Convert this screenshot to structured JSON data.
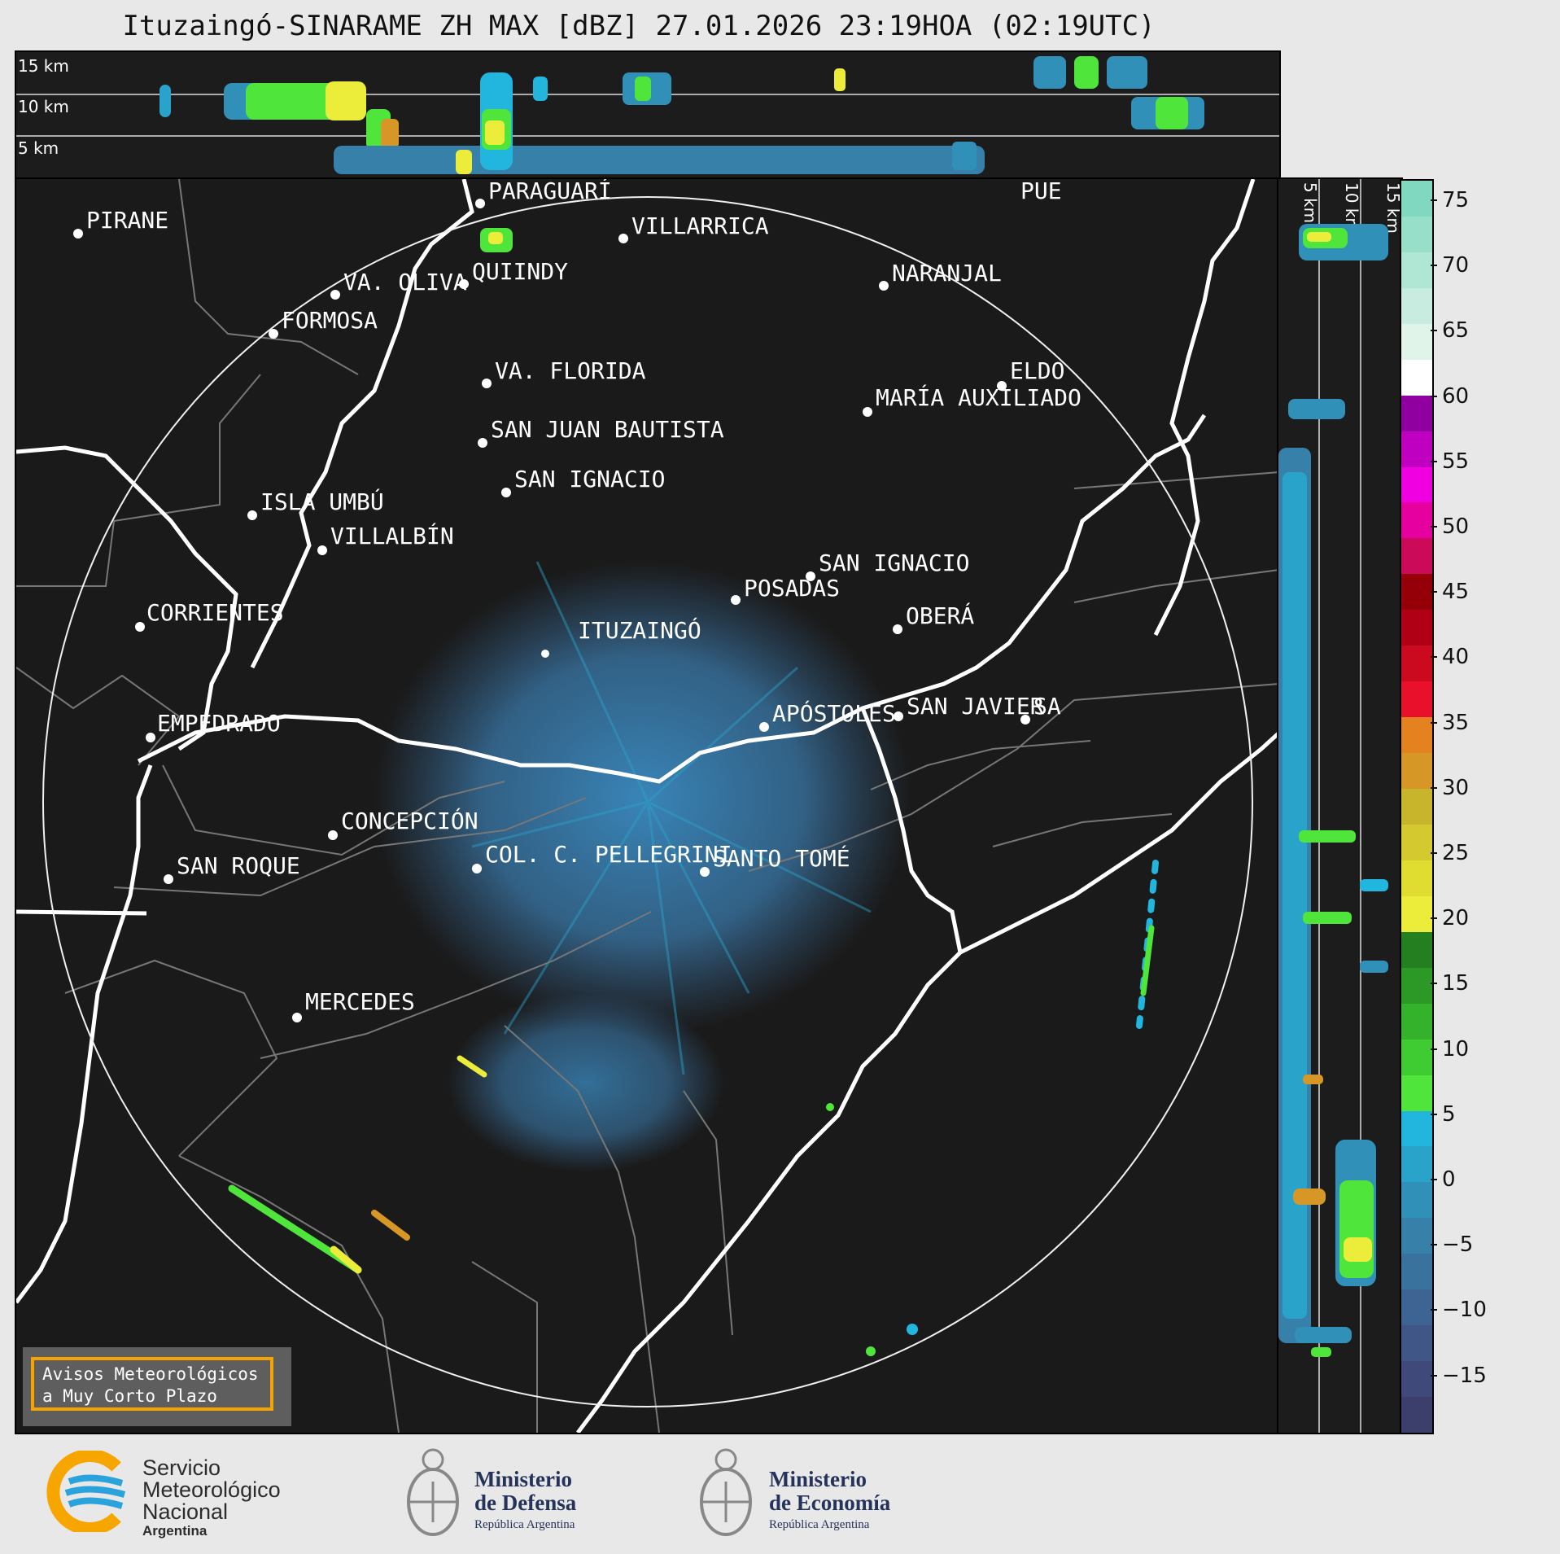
{
  "title": "Ituzaingó-SINARAME ZH MAX [dBZ] 27.01.2026 23:19HOA (02:19UTC)",
  "top_strip_labels": [
    "15 km",
    "10 km",
    "5 km"
  ],
  "right_strip_labels": [
    "5 km",
    "10 km",
    "15 km"
  ],
  "colorbar": {
    "ticks": [
      "75",
      "70",
      "65",
      "60",
      "55",
      "50",
      "45",
      "40",
      "35",
      "30",
      "25",
      "20",
      "15",
      "10",
      "5",
      "0",
      "−5",
      "−10",
      "−15"
    ],
    "colors": [
      "#3c3f6b",
      "#3f4a7a",
      "#3f5686",
      "#3d6492",
      "#3a729e",
      "#3680aa",
      "#3090b8",
      "#2aa3cb",
      "#22b6de",
      "#4fe53a",
      "#3fcc33",
      "#35b22c",
      "#2c9826",
      "#237f1f",
      "#ecec3a",
      "#e0dd30",
      "#d4c92e",
      "#c8b52c",
      "#d79726",
      "#e3821f",
      "#e8102a",
      "#cc0a1f",
      "#b00015",
      "#950008",
      "#cc0a5a",
      "#e600a0",
      "#f000e0",
      "#c000c0",
      "#9000a0",
      "#ffffff",
      "#e0f4ea",
      "#c8ede0",
      "#b0e6d4",
      "#98dfca",
      "#80d8c0"
    ]
  },
  "cities": [
    {
      "name": "PIRANE"
    },
    {
      "name": "PARAGUARÍ"
    },
    {
      "name": "VILLARRICA"
    },
    {
      "name": "QUIINDY"
    },
    {
      "name": "VA. OLIVA"
    },
    {
      "name": "FORMOSA"
    },
    {
      "name": "NARANJAL"
    },
    {
      "name": "VA. FLORIDA"
    },
    {
      "name": "ELDO"
    },
    {
      "name": "MARÍA AUXILIADO"
    },
    {
      "name": "SAN JUAN BAUTISTA"
    },
    {
      "name": "SAN IGNACIO"
    },
    {
      "name": "ISLA UMBÚ"
    },
    {
      "name": "VILLALBÍN"
    },
    {
      "name": "SAN IGNACIO"
    },
    {
      "name": "POSADAS"
    },
    {
      "name": "CORRIENTES"
    },
    {
      "name": "ITUZAINGÓ"
    },
    {
      "name": "OBERÁ"
    },
    {
      "name": "EMPEDRADO"
    },
    {
      "name": "APÓSTOLES"
    },
    {
      "name": "SAN JAVIER"
    },
    {
      "name": "SA"
    },
    {
      "name": "CONCEPCIÓN"
    },
    {
      "name": "COL. C. PELLEGRINI"
    },
    {
      "name": "SANTO TOMÉ"
    },
    {
      "name": "SAN ROQUE"
    },
    {
      "name": "MERCEDES"
    },
    {
      "name": "PUE"
    }
  ],
  "warning": {
    "line1": "Avisos Meteorológicos",
    "line2": "a Muy Corto Plazo"
  },
  "logos": {
    "smn": {
      "line1": "Servicio",
      "line2": "Meteorológico",
      "line3": "Nacional",
      "line4": "Argentina"
    },
    "defensa": {
      "line1": "Ministerio",
      "line2": "de Defensa",
      "line3": "República Argentina"
    },
    "economia": {
      "line1": "Ministerio",
      "line2": "de Economía",
      "line3": "República Argentina"
    }
  }
}
